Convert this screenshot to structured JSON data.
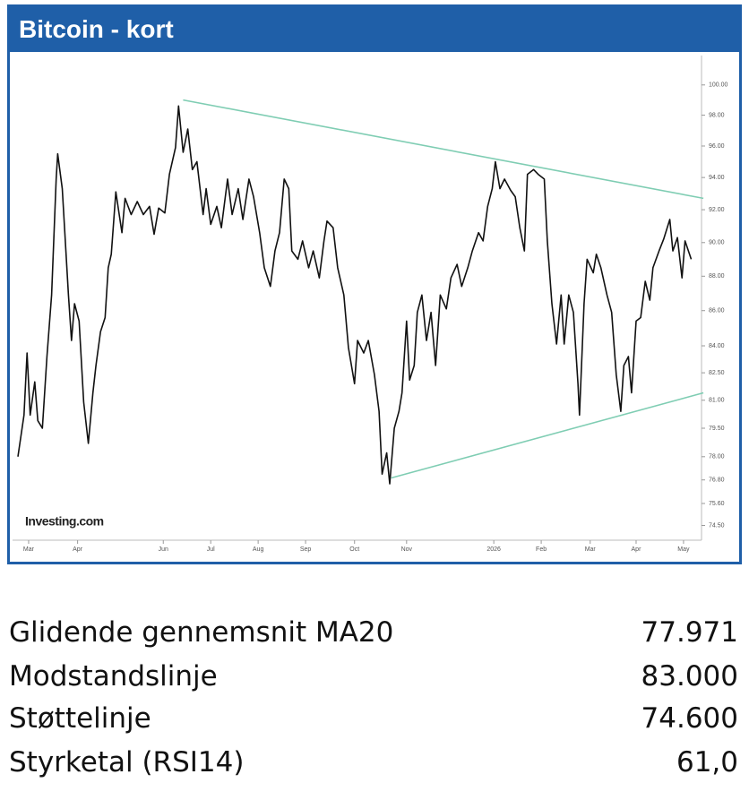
{
  "header": {
    "title": "Bitcoin - kort"
  },
  "chart_data": {
    "type": "line",
    "source_logo": "Investing.com",
    "x": [
      0,
      4,
      6,
      8,
      11,
      13,
      16,
      19,
      22,
      25,
      26,
      29,
      33,
      35,
      37,
      40,
      43,
      46,
      49,
      51,
      54,
      57,
      59,
      61,
      64,
      68,
      70,
      74,
      78,
      82,
      86,
      89,
      92,
      96,
      99,
      103,
      105,
      108,
      111,
      114,
      117,
      121,
      123,
      126,
      130,
      133,
      137,
      140,
      144,
      147,
      151,
      154,
      158,
      161,
      165,
      168,
      171,
      174,
      177,
      179,
      183,
      186,
      190,
      193,
      197,
      200,
      202,
      206,
      209,
      213,
      216,
      220,
      222,
      226,
      229,
      233,
      236,
      238,
      241,
      243,
      246,
      249,
      251,
      254,
      256,
      259,
      261,
      264,
      267,
      270,
      273,
      276,
      280,
      283,
      287,
      290,
      294,
      297,
      301,
      304,
      307,
      310,
      312,
      315,
      318,
      322,
      325,
      328,
      331,
      333,
      337,
      340,
      344,
      346,
      349,
      352,
      355,
      357,
      360,
      363,
      366,
      367,
      370,
      372,
      376,
      378,
      381,
      385,
      388,
      391,
      394,
      396,
      399,
      401,
      404,
      407,
      410,
      413,
      415,
      419,
      422,
      426,
      428,
      431,
      434,
      436,
      440
    ],
    "series": [
      {
        "color": "#111111",
        "values": [
          78.0,
          80.2,
          83.6,
          80.2,
          82.0,
          79.9,
          79.5,
          83.4,
          86.9,
          93.9,
          95.5,
          93.3,
          86.9,
          84.3,
          86.4,
          85.4,
          80.9,
          78.7,
          81.4,
          82.9,
          84.8,
          85.6,
          88.5,
          89.3,
          93.1,
          90.6,
          92.7,
          91.7,
          92.5,
          91.7,
          92.2,
          90.5,
          92.1,
          91.8,
          94.2,
          95.9,
          98.6,
          95.6,
          97.1,
          94.5,
          95.0,
          91.7,
          93.3,
          91.1,
          92.2,
          90.9,
          93.9,
          91.7,
          93.3,
          91.4,
          93.9,
          92.8,
          90.6,
          88.5,
          87.4,
          89.5,
          90.6,
          93.9,
          93.3,
          89.5,
          89.0,
          90.1,
          88.5,
          89.5,
          87.9,
          90.1,
          91.3,
          90.9,
          88.5,
          86.9,
          83.9,
          81.9,
          84.3,
          83.6,
          84.3,
          82.4,
          80.4,
          77.1,
          78.2,
          76.6,
          79.5,
          80.4,
          81.4,
          85.4,
          82.1,
          82.9,
          85.9,
          86.9,
          84.3,
          85.9,
          82.9,
          86.9,
          86.1,
          87.9,
          88.7,
          87.4,
          88.5,
          89.5,
          90.6,
          90.1,
          92.2,
          93.3,
          95.0,
          93.3,
          93.9,
          93.2,
          92.8,
          90.9,
          89.5,
          94.2,
          94.5,
          94.2,
          93.9,
          90.1,
          86.4,
          84.1,
          86.9,
          84.1,
          86.9,
          85.9,
          81.9,
          80.2,
          86.4,
          89.0,
          88.2,
          89.3,
          88.5,
          86.9,
          85.9,
          82.4,
          80.4,
          82.9,
          83.4,
          81.4,
          85.4,
          85.6,
          87.7,
          86.6,
          88.5,
          89.5,
          90.2,
          91.4,
          89.5,
          90.3,
          87.9,
          90.1,
          89.0
        ]
      }
    ],
    "trendlines": [
      {
        "color": "#7fcdb3",
        "x": [
          108,
          448
        ],
        "values": [
          99.0,
          92.7
        ]
      },
      {
        "color": "#7fcdb3",
        "x": [
          244,
          448
        ],
        "values": [
          76.9,
          81.4
        ]
      }
    ],
    "log_y": true,
    "xlim": [
      0,
      445
    ],
    "ylim": [
      73.9,
      101.8
    ],
    "yticks": [
      {
        "value": 100,
        "label": "100.00"
      },
      {
        "value": 98,
        "label": "98.00"
      },
      {
        "value": 96,
        "label": "96.00"
      },
      {
        "value": 94,
        "label": "94.00"
      },
      {
        "value": 92,
        "label": "92.00"
      },
      {
        "value": 90,
        "label": "90.00"
      },
      {
        "value": 88,
        "label": "88.00"
      },
      {
        "value": 86,
        "label": "86.00"
      },
      {
        "value": 84,
        "label": "84.00"
      },
      {
        "value": 82.5,
        "label": "82.50"
      },
      {
        "value": 81,
        "label": "81.00"
      },
      {
        "value": 79.5,
        "label": "79.50"
      },
      {
        "value": 78,
        "label": "78.00"
      },
      {
        "value": 76.8,
        "label": "76.80"
      },
      {
        "value": 75.6,
        "label": "75.60"
      },
      {
        "value": 74.5,
        "label": "74.50"
      }
    ],
    "xticks": [
      {
        "value": 7,
        "label": "Mar"
      },
      {
        "value": 39,
        "label": "Apr"
      },
      {
        "value": 95,
        "label": "Jun"
      },
      {
        "value": 126,
        "label": "Jul"
      },
      {
        "value": 157,
        "label": "Aug"
      },
      {
        "value": 188,
        "label": "Sep"
      },
      {
        "value": 220,
        "label": "Oct"
      },
      {
        "value": 254,
        "label": "Nov"
      },
      {
        "value": 311,
        "label": "2026"
      },
      {
        "value": 342,
        "label": "Feb"
      },
      {
        "value": 374,
        "label": "Mar"
      },
      {
        "value": 404,
        "label": "Apr"
      },
      {
        "value": 435,
        "label": "May"
      }
    ]
  },
  "table": {
    "rows": [
      [
        "Glidende gennemsnit MA20",
        "77.971"
      ],
      [
        "Modstandslinje",
        "83.000"
      ],
      [
        "Støttelinje",
        "74.600"
      ],
      [
        "Styrketal (RSI14)",
        "61,0"
      ]
    ]
  }
}
